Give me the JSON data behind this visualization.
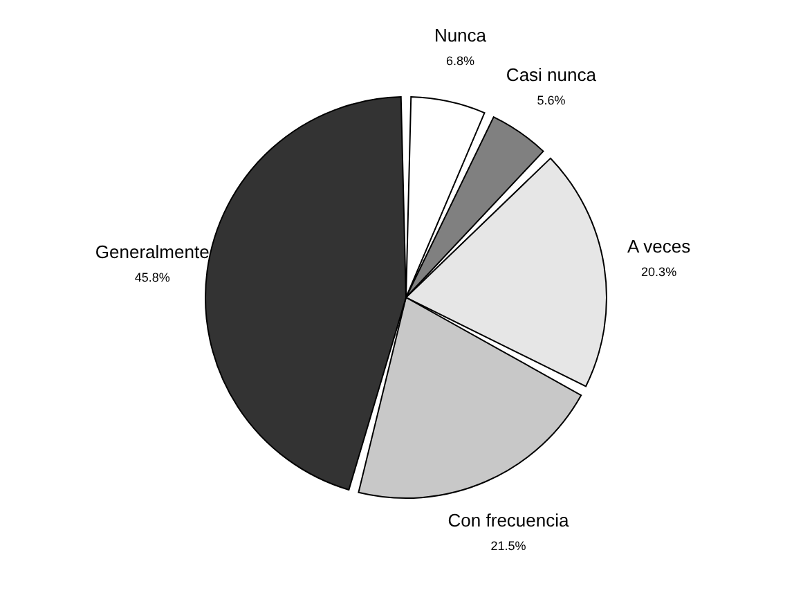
{
  "chart_data": {
    "type": "pie",
    "categories": [
      "Nunca",
      "Casi nunca",
      "A veces",
      "Con frecuencia",
      "Generalmente"
    ],
    "values": [
      6.8,
      5.6,
      20.3,
      21.5,
      45.8
    ],
    "value_labels": [
      "6.8%",
      "5.6%",
      "20.3%",
      "21.5%",
      "45.8%"
    ],
    "colors": [
      "#ffffff",
      "#808080",
      "#e6e6e6",
      "#c8c8c8",
      "#333333"
    ],
    "legend": false
  }
}
